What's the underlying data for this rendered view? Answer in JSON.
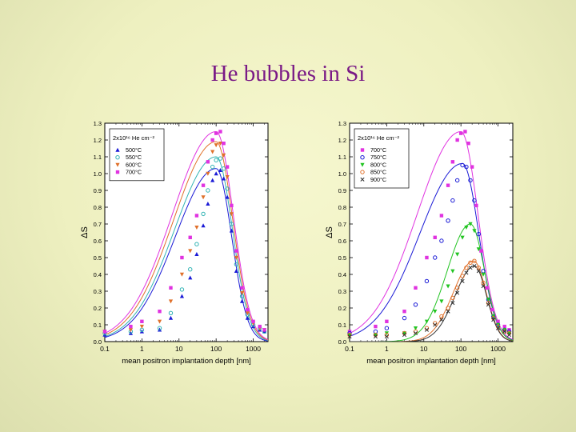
{
  "slide": {
    "title": "He bubbles in Si"
  },
  "chart_data": [
    {
      "type": "scatter",
      "xlabel": "mean positron implantation depth [nm]",
      "ylabel": "ΔS",
      "xscale": "log",
      "xlim": [
        0.1,
        2500
      ],
      "ylim": [
        0,
        1.3
      ],
      "xticks": [
        "0.1",
        "1",
        "10",
        "100",
        "1000"
      ],
      "yticks": [
        "0.0",
        "0.1",
        "0.2",
        "0.3",
        "0.4",
        "0.5",
        "0.6",
        "0.7",
        "0.8",
        "0.9",
        "1.0",
        "1.1",
        "1.2",
        "1.3"
      ],
      "legend_title": "2x10¹⁶ He cm⁻²",
      "legend_position": "top-left",
      "grid": false,
      "series": [
        {
          "name": "500°C",
          "color": "#1a1ad6",
          "marker": "triangle",
          "peak_x": 100,
          "peak_y": 1.03,
          "w_left": 1.1,
          "w_right": 0.42,
          "x": [
            0.1,
            0.5,
            1,
            3,
            6,
            12,
            20,
            30,
            45,
            60,
            80,
            100,
            130,
            160,
            200,
            260,
            350,
            500,
            700,
            1000,
            1500,
            2000
          ],
          "y": [
            0.04,
            0.05,
            0.06,
            0.07,
            0.14,
            0.27,
            0.38,
            0.52,
            0.69,
            0.82,
            0.96,
            1.0,
            1.02,
            0.97,
            0.86,
            0.66,
            0.42,
            0.24,
            0.14,
            0.09,
            0.07,
            0.06
          ]
        },
        {
          "name": "550°C",
          "color": "#32b4b4",
          "marker": "circle",
          "peak_x": 100,
          "peak_y": 1.1,
          "w_left": 1.12,
          "w_right": 0.44,
          "x": [
            0.1,
            0.5,
            1,
            3,
            6,
            12,
            20,
            30,
            45,
            60,
            80,
            100,
            130,
            160,
            200,
            260,
            350,
            500,
            700,
            1000,
            1500,
            2000
          ],
          "y": [
            0.05,
            0.06,
            0.07,
            0.08,
            0.17,
            0.31,
            0.43,
            0.58,
            0.76,
            0.9,
            1.04,
            1.08,
            1.09,
            1.03,
            0.91,
            0.7,
            0.46,
            0.27,
            0.16,
            0.1,
            0.08,
            0.06
          ]
        },
        {
          "name": "600°C",
          "color": "#e0702a",
          "marker": "triangle-down",
          "peak_x": 100,
          "peak_y": 1.19,
          "w_left": 1.15,
          "w_right": 0.45,
          "x": [
            0.1,
            0.5,
            1,
            3,
            6,
            12,
            20,
            30,
            45,
            60,
            80,
            100,
            130,
            160,
            200,
            260,
            350,
            500,
            700,
            1000,
            1500,
            2000
          ],
          "y": [
            0.06,
            0.07,
            0.09,
            0.12,
            0.24,
            0.4,
            0.54,
            0.68,
            0.86,
            1.0,
            1.13,
            1.17,
            1.18,
            1.11,
            0.98,
            0.76,
            0.5,
            0.29,
            0.17,
            0.11,
            0.08,
            0.07
          ]
        },
        {
          "name": "700°C",
          "color": "#e033e0",
          "marker": "square",
          "peak_x": 100,
          "peak_y": 1.25,
          "w_left": 1.18,
          "w_right": 0.46,
          "x": [
            0.1,
            0.5,
            1,
            3,
            6,
            12,
            20,
            30,
            45,
            60,
            80,
            100,
            130,
            160,
            200,
            260,
            350,
            500,
            700,
            1000,
            1500,
            2000
          ],
          "y": [
            0.06,
            0.09,
            0.12,
            0.18,
            0.32,
            0.5,
            0.62,
            0.75,
            0.93,
            1.07,
            1.2,
            1.24,
            1.25,
            1.18,
            1.04,
            0.81,
            0.54,
            0.32,
            0.19,
            0.12,
            0.09,
            0.07
          ]
        }
      ]
    },
    {
      "type": "scatter",
      "xlabel": "mean positron implantation depth [nm]",
      "ylabel": "ΔS",
      "xscale": "log",
      "xlim": [
        0.1,
        2500
      ],
      "ylim": [
        0,
        1.3
      ],
      "xticks": [
        "0.1",
        "1",
        "10",
        "100",
        "1000"
      ],
      "yticks": [
        "0.0",
        "0.1",
        "0.2",
        "0.3",
        "0.4",
        "0.5",
        "0.6",
        "0.7",
        "0.8",
        "0.9",
        "1.0",
        "1.1",
        "1.2",
        "1.3"
      ],
      "legend_title": "2x10¹⁶ He cm⁻²",
      "legend_position": "top-left",
      "grid": false,
      "series": [
        {
          "name": "700°C",
          "color": "#e033e0",
          "marker": "square",
          "peak_x": 100,
          "peak_y": 1.25,
          "w_left": 1.18,
          "w_right": 0.46,
          "x": [
            0.1,
            0.5,
            1,
            3,
            6,
            12,
            20,
            30,
            45,
            60,
            80,
            100,
            130,
            160,
            200,
            260,
            350,
            500,
            700,
            1000,
            1500,
            2000
          ],
          "y": [
            0.06,
            0.09,
            0.12,
            0.18,
            0.32,
            0.5,
            0.62,
            0.75,
            0.93,
            1.07,
            1.2,
            1.24,
            1.25,
            1.18,
            1.04,
            0.81,
            0.54,
            0.32,
            0.19,
            0.12,
            0.09,
            0.07
          ]
        },
        {
          "name": "750°C",
          "color": "#1a1ad6",
          "marker": "circle",
          "peak_x": 110,
          "peak_y": 1.06,
          "w_left": 1.15,
          "w_right": 0.44,
          "x": [
            0.1,
            0.5,
            1,
            3,
            6,
            12,
            20,
            30,
            45,
            60,
            80,
            110,
            140,
            180,
            230,
            300,
            400,
            550,
            750,
            1000,
            1500,
            2000
          ],
          "y": [
            0.05,
            0.06,
            0.08,
            0.14,
            0.22,
            0.36,
            0.5,
            0.6,
            0.72,
            0.84,
            0.96,
            1.05,
            1.04,
            0.96,
            0.84,
            0.64,
            0.42,
            0.25,
            0.15,
            0.1,
            0.07,
            0.06
          ]
        },
        {
          "name": "800°C",
          "color": "#22c422",
          "marker": "triangle-down",
          "peak_x": 180,
          "peak_y": 0.7,
          "w_left": 0.62,
          "w_right": 0.38,
          "x": [
            0.1,
            0.5,
            1,
            3,
            6,
            12,
            20,
            30,
            45,
            60,
            80,
            110,
            140,
            180,
            230,
            300,
            400,
            550,
            750,
            1000,
            1500,
            2000
          ],
          "y": [
            0.04,
            0.04,
            0.05,
            0.05,
            0.08,
            0.12,
            0.18,
            0.24,
            0.33,
            0.42,
            0.52,
            0.62,
            0.68,
            0.7,
            0.66,
            0.55,
            0.4,
            0.25,
            0.15,
            0.1,
            0.07,
            0.05
          ]
        },
        {
          "name": "850°C",
          "color": "#e0702a",
          "marker": "circle",
          "peak_x": 220,
          "peak_y": 0.48,
          "w_left": 0.55,
          "w_right": 0.34,
          "x": [
            0.1,
            0.5,
            1,
            3,
            6,
            12,
            20,
            30,
            45,
            60,
            80,
            110,
            140,
            180,
            230,
            300,
            400,
            550,
            750,
            1000,
            1500,
            2000
          ],
          "y": [
            0.04,
            0.04,
            0.04,
            0.05,
            0.06,
            0.08,
            0.11,
            0.15,
            0.2,
            0.26,
            0.32,
            0.39,
            0.44,
            0.47,
            0.48,
            0.44,
            0.35,
            0.23,
            0.14,
            0.09,
            0.06,
            0.05
          ]
        },
        {
          "name": "900°C",
          "color": "#333333",
          "marker": "x",
          "peak_x": 230,
          "peak_y": 0.45,
          "w_left": 0.52,
          "w_right": 0.33,
          "x": [
            0.1,
            0.5,
            1,
            3,
            6,
            12,
            20,
            30,
            45,
            60,
            80,
            110,
            140,
            180,
            230,
            300,
            400,
            550,
            750,
            1000,
            1500,
            2000
          ],
          "y": [
            0.03,
            0.03,
            0.03,
            0.04,
            0.05,
            0.07,
            0.1,
            0.13,
            0.18,
            0.23,
            0.29,
            0.36,
            0.41,
            0.44,
            0.45,
            0.42,
            0.33,
            0.22,
            0.13,
            0.08,
            0.06,
            0.04
          ]
        }
      ]
    }
  ]
}
